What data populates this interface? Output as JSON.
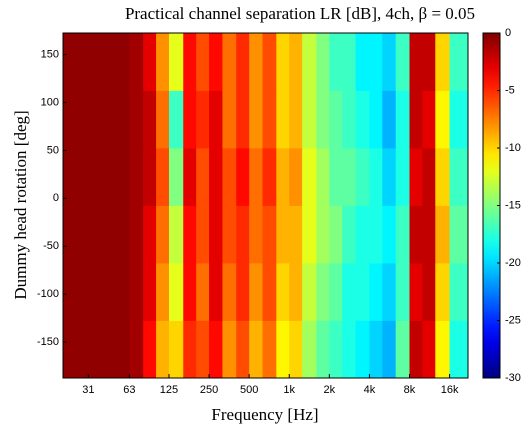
{
  "chart_data": {
    "type": "heatmap",
    "title": "Practical channel separation LR [dB], 4ch, β = 0.05",
    "xlabel": "Frequency [Hz]",
    "ylabel": "Dummy head rotation [deg]",
    "xscale": "log",
    "colormap": "jet",
    "x": [
      20,
      25,
      31.5,
      40,
      50,
      63,
      80,
      100,
      125,
      160,
      200,
      250,
      315,
      400,
      500,
      630,
      800,
      1000,
      1250,
      1600,
      2000,
      2500,
      3150,
      4000,
      5000,
      6300,
      8000,
      10000,
      12500,
      16000,
      22000
    ],
    "y": [
      -187.5,
      -127.5,
      -67.5,
      -7.5,
      52.5,
      112.5,
      172.5
    ],
    "values": [
      [
        -0.5,
        -0.5,
        -0.5,
        -0.5,
        -0.5,
        -1,
        -4,
        -9,
        -10,
        -5,
        -6,
        -4,
        -8,
        -6,
        -9,
        -7,
        -11,
        -10,
        -14,
        -16,
        -17,
        -18,
        -19,
        -20,
        -21,
        -16,
        -2,
        -3,
        -11,
        -18
      ],
      [
        -0.5,
        -0.5,
        -0.5,
        -0.5,
        -0.5,
        -1,
        -3,
        -8,
        -12,
        -4,
        -7,
        -3,
        -7,
        -5,
        -8,
        -6,
        -10,
        -9,
        -13,
        -15,
        -16,
        -18,
        -18,
        -19,
        -20,
        -17,
        -3,
        -2,
        -10,
        -17
      ],
      [
        -0.5,
        -0.5,
        -0.5,
        -0.5,
        -0.5,
        -1,
        -3,
        -7,
        -13,
        -4,
        -6,
        -3,
        -6,
        -5,
        -7,
        -6,
        -9,
        -9,
        -12,
        -14,
        -15,
        -17,
        -18,
        -18,
        -19,
        -17,
        -2,
        -2,
        -9,
        -16
      ],
      [
        -0.5,
        -0.5,
        -0.5,
        -0.5,
        -0.5,
        -1,
        -2,
        -6,
        -15,
        -3,
        -6,
        -3,
        -6,
        -4,
        -7,
        -5,
        -9,
        -8,
        -12,
        -14,
        -16,
        -16,
        -17,
        -18,
        -20,
        -18,
        -3,
        -2,
        -10,
        -17
      ],
      [
        -0.5,
        -0.5,
        -0.5,
        -0.5,
        -0.5,
        -1,
        -2,
        -7,
        -17,
        -4,
        -5,
        -3,
        -7,
        -5,
        -8,
        -6,
        -10,
        -9,
        -13,
        -15,
        -16,
        -17,
        -18,
        -19,
        -21,
        -18,
        -2,
        -3,
        -11,
        -18
      ],
      [
        -0.5,
        -0.5,
        -0.5,
        -0.5,
        -0.5,
        -1,
        -3,
        -8,
        -12,
        -4,
        -6,
        -4,
        -7,
        -5,
        -8,
        -6,
        -10,
        -9,
        -13,
        -15,
        -17,
        -17,
        -19,
        -19,
        -20,
        -17,
        -2,
        -2,
        -10,
        -17
      ]
    ],
    "xlim": [
      20,
      22000
    ],
    "ylim": [
      -187.5,
      172.5
    ],
    "zlim": [
      -30,
      0
    ],
    "xticks": [
      31,
      63,
      125,
      250,
      500,
      {
        "value": 1000,
        "label": "1k"
      },
      {
        "value": 2000,
        "label": "2k"
      },
      {
        "value": 4000,
        "label": "4k"
      },
      {
        "value": 8000,
        "label": "8k"
      },
      {
        "value": 16000,
        "label": "16k"
      }
    ],
    "yticks": [
      -150,
      -100,
      -50,
      0,
      50,
      100,
      150
    ],
    "zticks": [
      -30,
      -25,
      -20,
      -15,
      -10,
      -5,
      0
    ]
  }
}
